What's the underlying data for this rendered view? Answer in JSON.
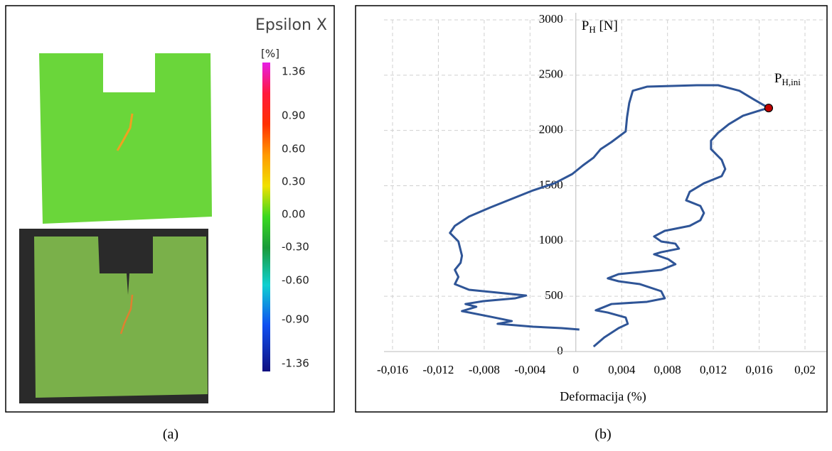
{
  "panel_a": {
    "title": "Epsilon X",
    "unit": "[%]",
    "colorbar_labels": [
      "1.36",
      "0.90",
      "0.60",
      "0.30",
      "0.00",
      "-0.30",
      "-0.60",
      "-0.90",
      "-1.36"
    ],
    "caption": "(a)"
  },
  "chart_data": {
    "type": "line",
    "y_label": {
      "main": "P",
      "sub": "H",
      "rest": " [N]"
    },
    "x_label": "Deformacija (%)",
    "caption": "(b)",
    "annotation": {
      "main": "P",
      "sub": "H,ini",
      "x": 0.01683,
      "y": 2203
    },
    "xlim": [
      -0.016,
      0.02
    ],
    "ylim": [
      0,
      3000
    ],
    "xticks": [
      {
        "value": -0.016,
        "label": "-0,016"
      },
      {
        "value": -0.012,
        "label": "-0,012"
      },
      {
        "value": -0.008,
        "label": "-0,008"
      },
      {
        "value": -0.004,
        "label": "-0,004"
      },
      0,
      {
        "value": 0.004,
        "label": "0,004"
      },
      {
        "value": 0.008,
        "label": "0,008"
      },
      {
        "value": 0.012,
        "label": "0,012"
      },
      {
        "value": 0.016,
        "label": "0,016"
      },
      {
        "value": 0.02,
        "label": "0,02"
      }
    ],
    "yticks": [
      0,
      500,
      1000,
      1500,
      2000,
      2500,
      3000
    ],
    "grid": true,
    "series": [
      {
        "color": "#2f5597",
        "x": [
          0.00155,
          0.00248,
          0.00373,
          0.00453,
          0.00435,
          0.00279,
          0.00174,
          0.00311,
          0.00621,
          0.00776,
          0.00745,
          0.00559,
          0.00373,
          0.00279,
          0.00373,
          0.00559,
          0.00745,
          0.00869,
          0.00807,
          0.00683,
          0.00745,
          0.009,
          0.00869,
          0.00745,
          0.00683,
          0.00776,
          0.00994,
          0.01087,
          0.01118,
          0.01087,
          0.00963,
          0.00994,
          0.01118,
          0.01211,
          0.01273,
          0.01304,
          0.01273,
          0.0118,
          0.0118,
          0.01242,
          0.01335,
          0.01459,
          0.01615,
          0.01683,
          0.01553,
          0.01428,
          0.01242,
          0.01056,
          0.00869,
          0.00621,
          0.00497,
          0.00466,
          0.00447,
          0.00435,
          0.00311,
          0.00217,
          0.00155,
          0.00062,
          -0.00031,
          -0.00186,
          -0.00373,
          -0.00559,
          -0.00745,
          -0.00932,
          -0.01056,
          -0.01099,
          -0.01025,
          -0.00994,
          -0.01006,
          -0.01056,
          -0.01025,
          -0.01056,
          -0.00932,
          -0.00683,
          -0.00435,
          -0.00528,
          -0.00807,
          -0.00963,
          -0.00869,
          -0.00994,
          -0.00745,
          -0.00559,
          -0.00683,
          -0.00373,
          -0.00124,
          0.00031
        ],
        "values": [
          45,
          128,
          212,
          251,
          308,
          353,
          373,
          430,
          450,
          482,
          546,
          610,
          636,
          662,
          700,
          719,
          739,
          790,
          835,
          880,
          899,
          931,
          976,
          996,
          1041,
          1092,
          1137,
          1188,
          1253,
          1317,
          1368,
          1445,
          1522,
          1561,
          1587,
          1651,
          1734,
          1831,
          1908,
          1979,
          2056,
          2133,
          2184,
          2203,
          2281,
          2359,
          2409,
          2409,
          2403,
          2396,
          2359,
          2248,
          2120,
          1991,
          1895,
          1831,
          1754,
          1684,
          1606,
          1522,
          1458,
          1381,
          1304,
          1221,
          1137,
          1073,
          996,
          867,
          803,
          739,
          675,
          610,
          559,
          533,
          507,
          482,
          456,
          430,
          405,
          366,
          315,
          276,
          251,
          225,
          212,
          199
        ]
      }
    ]
  }
}
